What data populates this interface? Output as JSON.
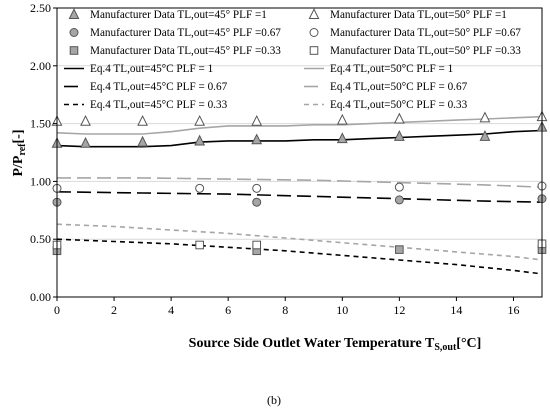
{
  "chart_data": {
    "type": "line",
    "xlabel_main": "Source Side Outlet Water Temperature T",
    "xlabel_sub": "S,out",
    "xlabel_unit": "[°C]",
    "ylabel_main": "P/P",
    "ylabel_sub": "ref",
    "ylabel_unit": "[-]",
    "caption": "(b)",
    "xlim": [
      0,
      17
    ],
    "ylim": [
      0,
      2.5
    ],
    "x_ticks": [
      "0",
      "2",
      "4",
      "6",
      "8",
      "10",
      "12",
      "14",
      "16"
    ],
    "y_ticks": [
      "0.00",
      "0.50",
      "1.00",
      "1.50",
      "2.00",
      "2.50"
    ],
    "grid": "horizontal",
    "legend_position": "top",
    "series": [
      {
        "name": "Manufacturer Data TL,out=45° PLF =1",
        "kind": "marker",
        "marker": "triangle",
        "fill": "#a6a6a6",
        "x": [
          0,
          1,
          3,
          5,
          7,
          10,
          12,
          15,
          17
        ],
        "y": [
          1.33,
          1.33,
          1.34,
          1.35,
          1.36,
          1.37,
          1.39,
          1.39,
          1.47
        ]
      },
      {
        "name": "Manufacturer Data TL,out=50° PLF =1",
        "kind": "marker",
        "marker": "triangle",
        "fill": "#ffffff",
        "x": [
          0,
          1,
          3,
          5,
          7,
          10,
          12,
          15,
          17
        ],
        "y": [
          1.52,
          1.52,
          1.52,
          1.52,
          1.52,
          1.53,
          1.54,
          1.55,
          1.56
        ]
      },
      {
        "name": "Manufacturer Data TL,out=45° PLF =0.67",
        "kind": "marker",
        "marker": "circle",
        "fill": "#a6a6a6",
        "x": [
          0,
          7,
          12,
          17
        ],
        "y": [
          0.82,
          0.82,
          0.84,
          0.85
        ]
      },
      {
        "name": "Manufacturer Data TL,out=50° PLF =0.67",
        "kind": "marker",
        "marker": "circle",
        "fill": "#ffffff",
        "x": [
          0,
          5,
          7,
          12,
          17
        ],
        "y": [
          0.94,
          0.94,
          0.94,
          0.95,
          0.96
        ]
      },
      {
        "name": "Manufacturer Data TL,out=45° PLF =0.33",
        "kind": "marker",
        "marker": "square",
        "fill": "#a6a6a6",
        "x": [
          0,
          7,
          12,
          17
        ],
        "y": [
          0.4,
          0.4,
          0.41,
          0.41
        ]
      },
      {
        "name": "Manufacturer Data TL,out=50° PLF =0.33",
        "kind": "marker",
        "marker": "square",
        "fill": "#ffffff",
        "x": [
          0,
          5,
          7,
          17
        ],
        "y": [
          0.45,
          0.45,
          0.45,
          0.46
        ]
      },
      {
        "name": "Eq.4 TL,out=45°C PLF = 1",
        "kind": "line",
        "color": "#000000",
        "dash": "",
        "x": [
          0,
          1,
          2,
          3,
          4,
          5,
          6,
          7,
          8,
          9,
          10,
          11,
          12,
          13,
          14,
          15,
          16,
          17
        ],
        "y": [
          1.31,
          1.3,
          1.3,
          1.3,
          1.31,
          1.34,
          1.35,
          1.35,
          1.35,
          1.36,
          1.36,
          1.37,
          1.38,
          1.39,
          1.4,
          1.41,
          1.43,
          1.44
        ]
      },
      {
        "name": "Eq.4 TL,out=50°C PLF = 1",
        "kind": "line",
        "color": "#a6a6a6",
        "dash": "",
        "x": [
          0,
          1,
          2,
          3,
          4,
          5,
          6,
          7,
          8,
          9,
          10,
          11,
          12,
          13,
          14,
          15,
          16,
          17
        ],
        "y": [
          1.42,
          1.41,
          1.41,
          1.41,
          1.43,
          1.46,
          1.48,
          1.48,
          1.48,
          1.49,
          1.49,
          1.5,
          1.51,
          1.52,
          1.53,
          1.54,
          1.55,
          1.56
        ]
      },
      {
        "name": "Eq.4 TL,out=45°C PLF = 0.67",
        "kind": "line",
        "color": "#000000",
        "dash": "14,6",
        "x": [
          0,
          3,
          6,
          9,
          12,
          15,
          17
        ],
        "y": [
          0.91,
          0.9,
          0.89,
          0.87,
          0.85,
          0.83,
          0.82
        ]
      },
      {
        "name": "Eq.4 TL,out=50°C PLF = 0.67",
        "kind": "line",
        "color": "#a6a6a6",
        "dash": "14,6",
        "x": [
          0,
          3,
          6,
          9,
          12,
          15,
          17
        ],
        "y": [
          1.03,
          1.03,
          1.02,
          1.01,
          0.99,
          0.97,
          0.95
        ]
      },
      {
        "name": "Eq.4 TL,out=45°C PLF = 0.33",
        "kind": "line",
        "color": "#000000",
        "dash": "5,4",
        "x": [
          0,
          2,
          4,
          6,
          8,
          10,
          12,
          14,
          16,
          17
        ],
        "y": [
          0.5,
          0.48,
          0.46,
          0.43,
          0.4,
          0.36,
          0.32,
          0.28,
          0.23,
          0.2
        ]
      },
      {
        "name": "Eq.4 TL,out=50°C PLF = 0.33",
        "kind": "line",
        "color": "#a6a6a6",
        "dash": "5,4",
        "x": [
          0,
          2,
          4,
          6,
          8,
          10,
          12,
          14,
          16,
          17
        ],
        "y": [
          0.63,
          0.61,
          0.58,
          0.55,
          0.51,
          0.47,
          0.43,
          0.39,
          0.35,
          0.32
        ]
      }
    ]
  }
}
